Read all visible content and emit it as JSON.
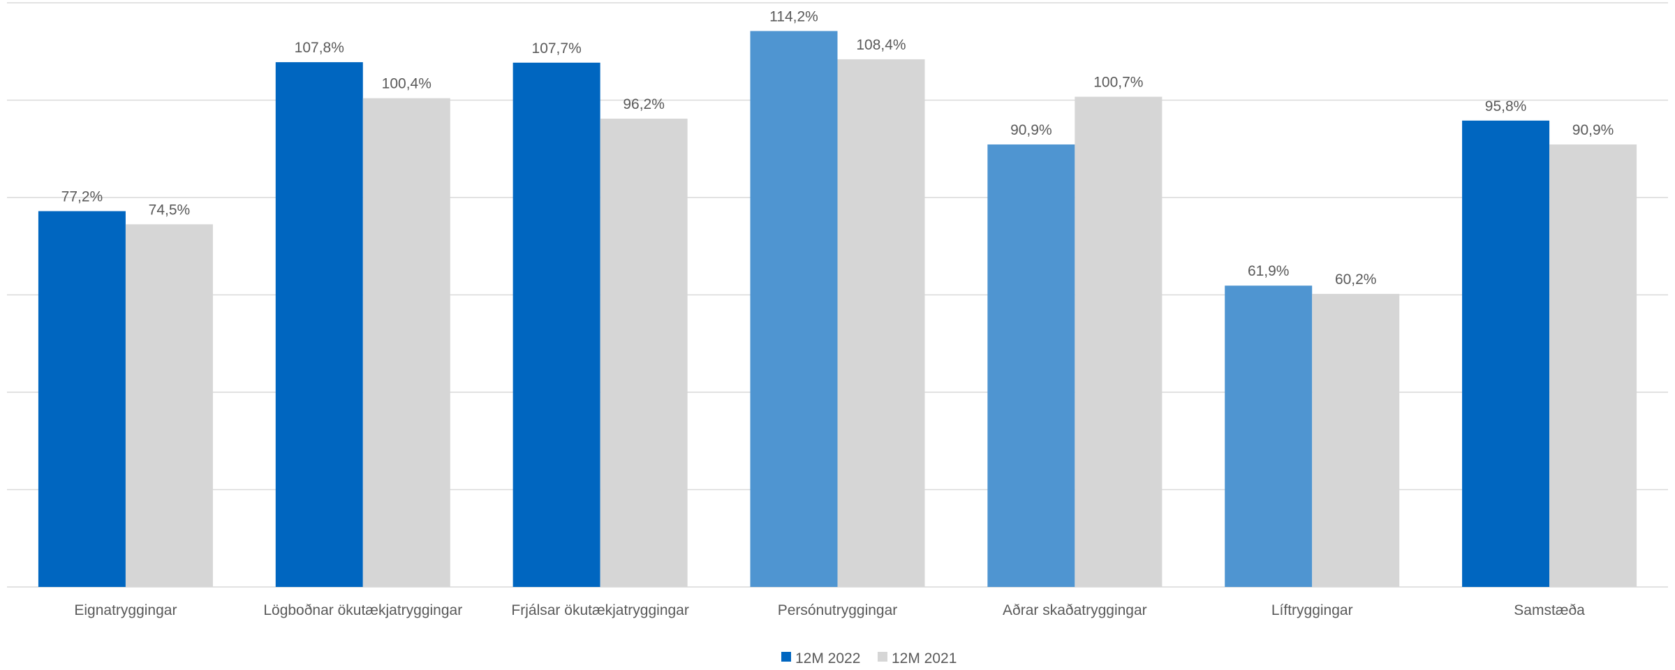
{
  "chart_data": {
    "type": "bar",
    "categories": [
      "Eignatryggingar",
      "Lögboðnar ökutækjatryggingar",
      "Frjálsar ökutækjatryggingar",
      "Persónutryggingar",
      "Aðrar skaðatryggingar",
      "Líftryggingar",
      "Samstæða"
    ],
    "series": [
      {
        "name": "12M 2022",
        "color": "#0066c0",
        "light_color": "#4f95d1",
        "values": [
          77.2,
          107.8,
          107.7,
          114.2,
          90.9,
          61.9,
          95.8
        ],
        "labels": [
          "77,2%",
          "107,8%",
          "107,7%",
          "114,2%",
          "90,9%",
          "61,9%",
          "95,8%"
        ],
        "light_categories": [
          3,
          4,
          5
        ]
      },
      {
        "name": "12M 2021",
        "color": "#d6d6d6",
        "values": [
          74.5,
          100.4,
          96.2,
          108.4,
          100.7,
          60.2,
          90.9
        ],
        "labels": [
          "74,5%",
          "100,4%",
          "96,2%",
          "108,4%",
          "100,7%",
          "60,2%",
          "90,9%"
        ]
      }
    ],
    "ylim": [
      0,
      120
    ],
    "grid_step": 20,
    "grid": true,
    "legend_position": "bottom",
    "title": "",
    "xlabel": "",
    "ylabel": ""
  }
}
